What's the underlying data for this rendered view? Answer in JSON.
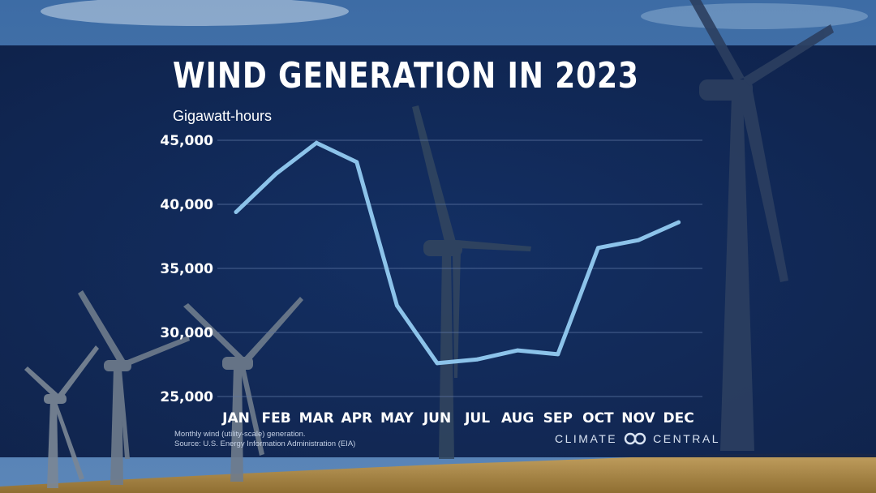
{
  "chart_data": {
    "type": "line",
    "title": "WIND GENERATION IN 2023",
    "ylabel": "Gigawatt-hours",
    "xlabel": "",
    "categories": [
      "JAN",
      "FEB",
      "MAR",
      "APR",
      "MAY",
      "JUN",
      "JUL",
      "AUG",
      "SEP",
      "OCT",
      "NOV",
      "DEC"
    ],
    "series": [
      {
        "values": [
          39400,
          42400,
          44800,
          43300,
          32100,
          27600,
          27900,
          28600,
          28300,
          36600,
          37200,
          38600
        ]
      }
    ],
    "ylim": [
      25000,
      45000
    ],
    "yticks": [
      25000,
      30000,
      35000,
      40000,
      45000
    ],
    "ytick_labels": [
      "25,000",
      "30,000",
      "35,000",
      "40,000",
      "45,000"
    ],
    "grid": true,
    "line_color": "#8cc3ea"
  },
  "footnote": {
    "line1": "Monthly wind (utility-scale) generation.",
    "line2": "Source: U.S. Energy Information Administration (EIA)"
  },
  "brand": {
    "left": "CLIMATE",
    "right": "CENTRAL",
    "logo_icon": "linked-rings-icon"
  },
  "colors": {
    "panel": "#0d2350",
    "sky": "#3f6fa5",
    "field": "#b39250"
  }
}
